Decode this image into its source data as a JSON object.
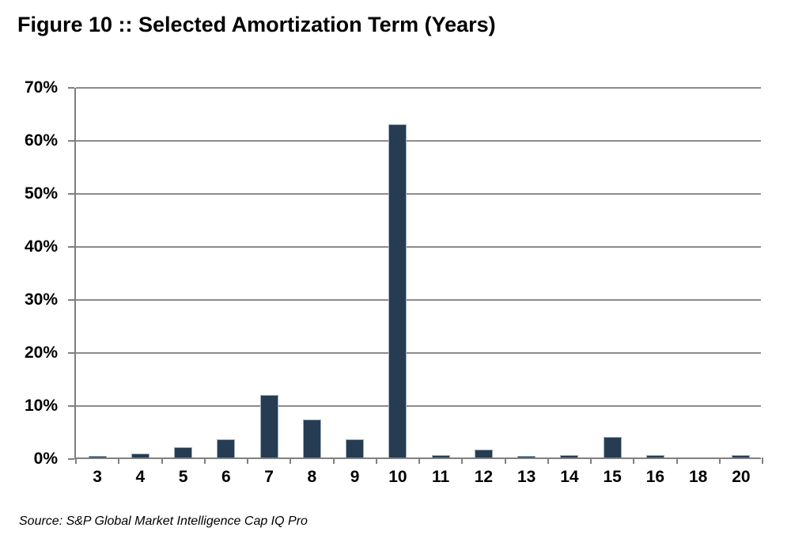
{
  "title": "Figure 10 :: Selected Amortization Term (Years)",
  "source": "Source: S&P Global Market Intelligence Cap IQ Pro",
  "chart_data": {
    "type": "bar",
    "title": "Figure 10 :: Selected Amortization Term (Years)",
    "categories": [
      "3",
      "4",
      "5",
      "6",
      "7",
      "8",
      "9",
      "10",
      "11",
      "12",
      "13",
      "14",
      "15",
      "16",
      "18",
      "20"
    ],
    "values": [
      0.3,
      0.7,
      2.0,
      3.4,
      11.8,
      7.2,
      3.5,
      62.8,
      0.4,
      1.5,
      0.3,
      0.5,
      3.9,
      0.4,
      0.0,
      0.5
    ],
    "xlabel": "",
    "ylabel": "",
    "ylim": [
      0,
      70
    ],
    "ytick_step": 10,
    "ytick_labels": [
      "0%",
      "10%",
      "20%",
      "30%",
      "40%",
      "50%",
      "60%",
      "70%"
    ],
    "grid": true,
    "legend": false,
    "colors": {
      "bar_fill": "#253C52",
      "bar_border": "#9FAFBD",
      "gridline": "#8c8c8c",
      "axis": "#808080",
      "text": "#000000"
    }
  }
}
